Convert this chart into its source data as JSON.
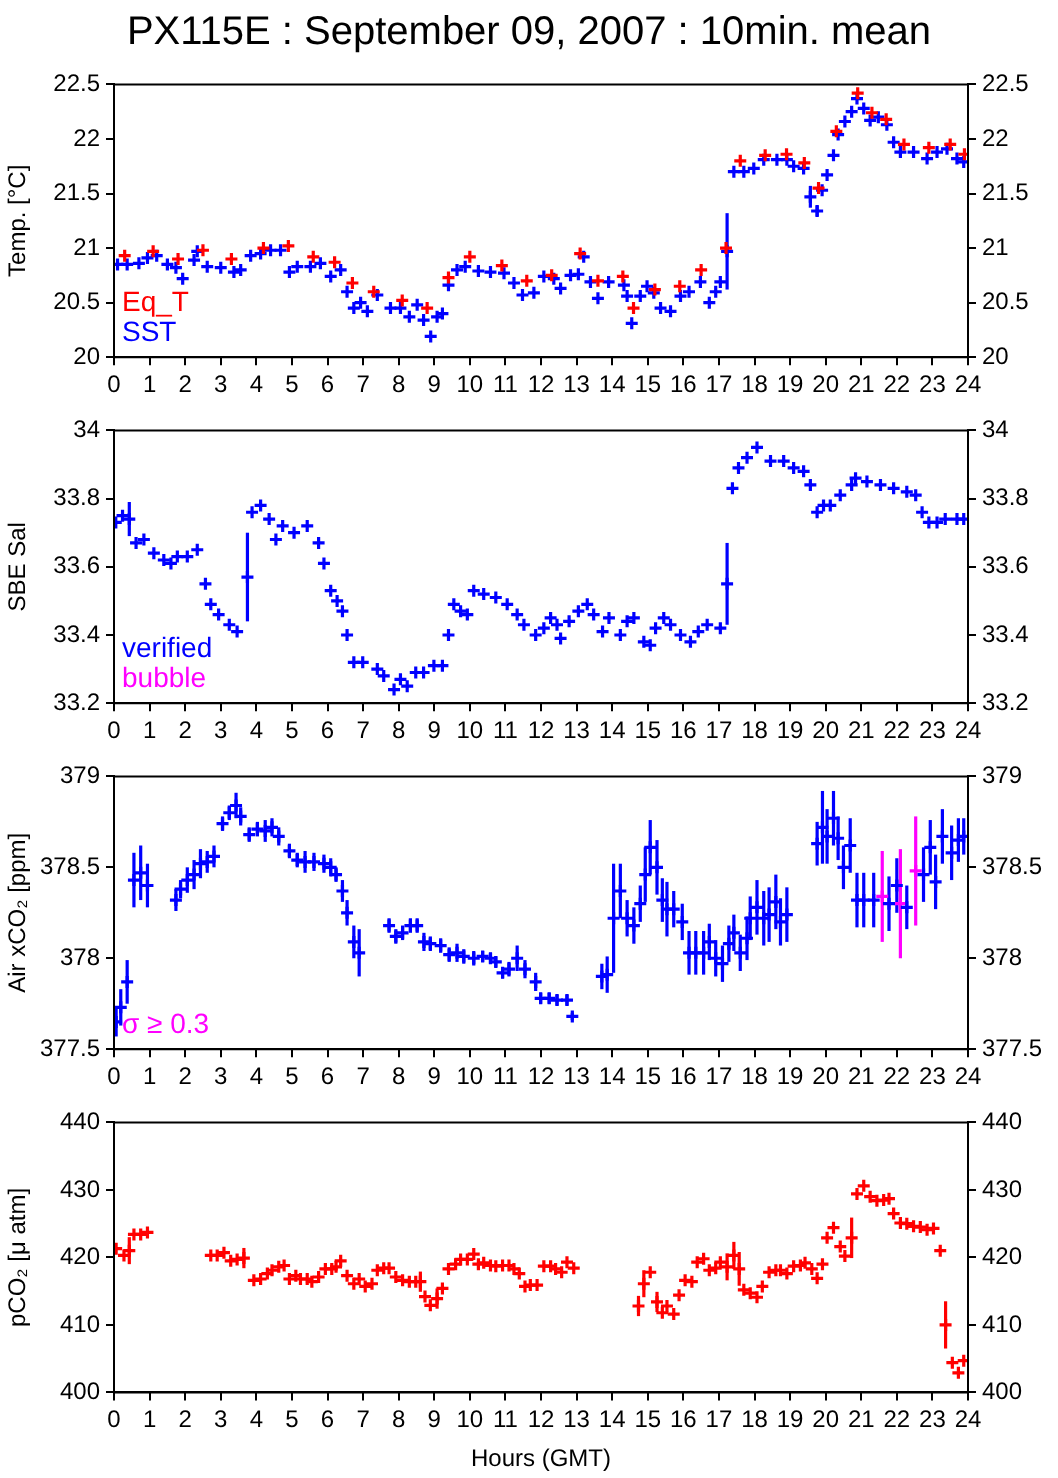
{
  "chart_data": [
    {
      "type": "scatter",
      "title": "PX115E : September 09, 2007 : 10min. mean",
      "ylabel": "Temp. [°C]",
      "xlim": [
        0,
        24
      ],
      "xticks": [
        0,
        1,
        2,
        3,
        4,
        5,
        6,
        7,
        8,
        9,
        10,
        11,
        12,
        13,
        14,
        15,
        16,
        17,
        18,
        19,
        20,
        21,
        22,
        23,
        24
      ],
      "ylim": [
        20,
        22.5
      ],
      "yticks": [
        20,
        20.5,
        21,
        21.5,
        22,
        22.5
      ],
      "y2lim": [
        20,
        22.5
      ],
      "y2ticks": [
        20,
        20.5,
        21,
        21.5,
        22,
        22.5
      ],
      "marker": "cross",
      "legend": "bottom left",
      "series": [
        {
          "name": "Eq_T",
          "color": "#ff0000",
          "x": [
            0.3,
            1.1,
            1.8,
            2.5,
            3.3,
            4.2,
            4.9,
            5.6,
            6.2,
            6.7,
            7.3,
            8.1,
            8.8,
            9.4,
            10.0,
            10.9,
            11.6,
            12.3,
            13.1,
            13.6,
            14.3,
            14.6,
            15.2,
            15.9,
            16.5,
            17.2,
            17.6,
            18.3,
            18.9,
            19.4,
            19.8,
            20.3,
            20.9,
            21.3,
            21.7,
            22.2,
            22.9,
            23.5,
            23.9
          ],
          "values": [
            20.93,
            20.97,
            20.9,
            20.98,
            20.9,
            21.0,
            21.02,
            20.92,
            20.87,
            20.68,
            20.6,
            20.52,
            20.45,
            20.73,
            20.92,
            20.84,
            20.7,
            20.75,
            20.95,
            20.7,
            20.74,
            20.45,
            20.62,
            20.65,
            20.8,
            21.0,
            21.8,
            21.85,
            21.86,
            21.78,
            21.55,
            22.07,
            22.42,
            22.24,
            22.18,
            21.95,
            21.92,
            21.95,
            21.86
          ]
        },
        {
          "name": "SST",
          "color": "#0000ff",
          "x": [
            0.1,
            0.37,
            0.7,
            0.94,
            1.2,
            1.5,
            1.74,
            1.93,
            2.25,
            2.34,
            2.62,
            3.0,
            3.37,
            3.56,
            3.84,
            4.12,
            4.4,
            4.68,
            4.93,
            5.15,
            5.52,
            5.8,
            6.09,
            6.37,
            6.55,
            6.74,
            6.93,
            7.12,
            7.4,
            7.77,
            8.05,
            8.3,
            8.52,
            8.7,
            8.9,
            9.08,
            9.23,
            9.4,
            9.64,
            9.87,
            10.24,
            10.58,
            10.96,
            11.24,
            11.48,
            11.8,
            12.08,
            12.36,
            12.55,
            12.83,
            13.05,
            13.2,
            13.39,
            13.6,
            13.9,
            14.33,
            14.42,
            14.55,
            14.79,
            14.98,
            15.17,
            15.36,
            15.64,
            15.92,
            16.16,
            16.48,
            16.73,
            16.91,
            17.04,
            17.23,
            17.42,
            17.7,
            17.98,
            18.26,
            18.63,
            18.91,
            19.1,
            19.38,
            19.57,
            19.76,
            19.9,
            20.04,
            20.22,
            20.35,
            20.54,
            20.73,
            20.88,
            21.07,
            21.25,
            21.48,
            21.72,
            21.91,
            22.1,
            22.47,
            22.85,
            23.13,
            23.41,
            23.69,
            23.88
          ],
          "values": [
            20.85,
            20.85,
            20.86,
            20.91,
            20.93,
            20.85,
            20.82,
            20.72,
            20.89,
            20.97,
            20.83,
            20.82,
            20.78,
            20.8,
            20.93,
            20.95,
            20.98,
            20.98,
            20.78,
            20.83,
            20.83,
            20.86,
            20.74,
            20.8,
            20.6,
            20.45,
            20.5,
            20.42,
            20.57,
            20.45,
            20.45,
            20.37,
            20.48,
            20.34,
            20.19,
            20.37,
            20.4,
            20.66,
            20.8,
            20.83,
            20.79,
            20.78,
            20.77,
            20.68,
            20.57,
            20.59,
            20.74,
            20.72,
            20.63,
            20.75,
            20.76,
            20.92,
            20.69,
            20.54,
            20.69,
            20.66,
            20.56,
            20.31,
            20.56,
            20.65,
            20.59,
            20.45,
            20.42,
            20.56,
            20.6,
            20.69,
            20.5,
            20.6,
            20.69,
            20.97,
            21.7,
            21.7,
            21.73,
            21.81,
            21.81,
            21.81,
            21.75,
            21.73,
            21.47,
            21.34,
            21.53,
            21.67,
            21.85,
            22.04,
            22.16,
            22.25,
            22.37,
            22.28,
            22.17,
            22.2,
            22.13,
            21.97,
            21.88,
            21.88,
            21.82,
            21.88,
            21.91,
            21.82,
            21.79
          ],
          "errors": [
            null,
            null,
            null,
            null,
            null,
            null,
            null,
            null,
            null,
            null,
            null,
            null,
            null,
            null,
            null,
            null,
            null,
            null,
            null,
            null,
            null,
            null,
            null,
            null,
            null,
            null,
            null,
            null,
            null,
            null,
            null,
            null,
            null,
            null,
            null,
            null,
            null,
            null,
            null,
            null,
            null,
            null,
            null,
            null,
            null,
            null,
            null,
            null,
            null,
            null,
            null,
            null,
            null,
            null,
            null,
            null,
            null,
            null,
            null,
            null,
            null,
            null,
            null,
            null,
            null,
            null,
            null,
            null,
            null,
            0.35,
            null,
            null,
            null,
            null,
            null,
            null,
            null,
            null,
            0.1,
            0.05,
            null,
            null,
            null,
            null,
            null,
            null,
            null,
            null,
            null,
            null,
            null,
            null,
            null,
            null,
            null,
            null,
            null,
            null,
            null
          ]
        }
      ]
    },
    {
      "type": "scatter",
      "ylabel": "SBE Sal",
      "xlim": [
        0,
        24
      ],
      "xticks": [
        0,
        1,
        2,
        3,
        4,
        5,
        6,
        7,
        8,
        9,
        10,
        11,
        12,
        13,
        14,
        15,
        16,
        17,
        18,
        19,
        20,
        21,
        22,
        23,
        24
      ],
      "ylim": [
        33.2,
        34
      ],
      "yticks": [
        33.2,
        33.4,
        33.6,
        33.8,
        34
      ],
      "y2lim": [
        33.2,
        34
      ],
      "y2ticks": [
        33.2,
        33.4,
        33.6,
        33.8,
        34
      ],
      "marker": "cross",
      "legend": "bottom left",
      "series": [
        {
          "name": "verified",
          "color": "#0000ff",
          "x": [
            0.05,
            0.24,
            0.43,
            0.62,
            0.84,
            1.12,
            1.4,
            1.6,
            1.78,
            2.06,
            2.34,
            2.57,
            2.72,
            2.94,
            3.24,
            3.46,
            3.75,
            3.88,
            4.12,
            4.36,
            4.55,
            4.74,
            5.06,
            5.43,
            5.75,
            5.9,
            6.09,
            6.27,
            6.42,
            6.55,
            6.74,
            6.99,
            7.4,
            7.58,
            7.87,
            8.05,
            8.24,
            8.48,
            8.7,
            8.99,
            9.23,
            9.4,
            9.55,
            9.74,
            9.93,
            10.11,
            10.39,
            10.73,
            11.05,
            11.33,
            11.52,
            11.85,
            12.08,
            12.27,
            12.45,
            12.55,
            12.79,
            13.05,
            13.3,
            13.48,
            13.73,
            13.91,
            14.23,
            14.42,
            14.61,
            14.89,
            15.07,
            15.22,
            15.45,
            15.64,
            15.92,
            16.2,
            16.42,
            16.67,
            17.04,
            17.23,
            17.38,
            17.55,
            17.79,
            18.07,
            18.45,
            18.82,
            19.1,
            19.38,
            19.57,
            19.76,
            19.94,
            20.13,
            20.41,
            20.73,
            20.84,
            21.16,
            21.54,
            21.91,
            22.28,
            22.53,
            22.71,
            22.9,
            23.13,
            23.36,
            23.69,
            23.88
          ],
          "values": [
            33.73,
            33.75,
            33.74,
            33.67,
            33.68,
            33.64,
            33.62,
            33.61,
            33.63,
            33.63,
            33.65,
            33.55,
            33.49,
            33.46,
            33.43,
            33.41,
            33.57,
            33.76,
            33.78,
            33.74,
            33.68,
            33.72,
            33.7,
            33.72,
            33.67,
            33.61,
            33.53,
            33.5,
            33.47,
            33.4,
            33.32,
            33.32,
            33.3,
            33.28,
            33.24,
            33.27,
            33.25,
            33.29,
            33.29,
            33.31,
            33.31,
            33.4,
            33.49,
            33.47,
            33.46,
            33.53,
            33.52,
            33.51,
            33.49,
            33.46,
            33.43,
            33.4,
            33.42,
            33.45,
            33.43,
            33.39,
            33.44,
            33.47,
            33.49,
            33.46,
            33.41,
            33.45,
            33.4,
            33.44,
            33.45,
            33.38,
            33.37,
            33.42,
            33.45,
            33.43,
            33.4,
            33.38,
            33.41,
            33.43,
            33.42,
            33.55,
            33.83,
            33.89,
            33.92,
            33.95,
            33.91,
            33.91,
            33.89,
            33.88,
            33.84,
            33.76,
            33.78,
            33.78,
            33.81,
            33.84,
            33.86,
            33.85,
            33.84,
            33.83,
            33.82,
            33.81,
            33.76,
            33.73,
            33.73,
            33.74,
            33.74,
            33.74
          ],
          "errors": [
            null,
            null,
            0.05,
            null,
            null,
            null,
            null,
            null,
            null,
            null,
            null,
            null,
            null,
            null,
            null,
            null,
            0.13,
            null,
            null,
            null,
            null,
            null,
            null,
            null,
            null,
            null,
            null,
            null,
            null,
            null,
            null,
            null,
            null,
            null,
            null,
            null,
            null,
            null,
            null,
            null,
            null,
            null,
            null,
            null,
            null,
            null,
            null,
            null,
            null,
            null,
            null,
            null,
            null,
            null,
            null,
            null,
            null,
            null,
            null,
            null,
            null,
            null,
            null,
            null,
            null,
            null,
            null,
            null,
            null,
            null,
            null,
            null,
            null,
            null,
            null,
            0.12,
            null,
            null,
            null,
            null,
            null,
            null,
            null,
            null,
            null,
            null,
            null,
            null,
            null,
            null,
            null,
            null,
            null,
            null,
            null,
            null,
            null,
            null,
            null,
            null,
            null,
            null
          ]
        },
        {
          "name": "bubble",
          "color": "#ff00ff"
        }
      ]
    },
    {
      "type": "scatter",
      "ylabel": "Air xCO₂ [ppm]",
      "xlim": [
        0,
        24
      ],
      "xticks": [
        0,
        1,
        2,
        3,
        4,
        5,
        6,
        7,
        8,
        9,
        10,
        11,
        12,
        13,
        14,
        15,
        16,
        17,
        18,
        19,
        20,
        21,
        22,
        23,
        24
      ],
      "ylim": [
        377.5,
        379
      ],
      "yticks": [
        377.5,
        378,
        378.5,
        379
      ],
      "y2lim": [
        377.5,
        379
      ],
      "y2ticks": [
        377.5,
        378,
        378.5,
        379
      ],
      "marker": "cross",
      "legend": "bottom left",
      "series": [
        {
          "color": "#0000ff",
          "x": [
            0.06,
            0.19,
            0.37,
            0.56,
            0.75,
            0.94,
            1.74,
            1.87,
            2.06,
            2.25,
            2.43,
            2.62,
            2.81,
            3.05,
            3.24,
            3.43,
            3.56,
            3.8,
            4.03,
            4.25,
            4.44,
            4.63,
            4.93,
            5.15,
            5.37,
            5.62,
            5.9,
            6.09,
            6.24,
            6.42,
            6.55,
            6.74,
            6.89,
            7.73,
            7.92,
            8.11,
            8.33,
            8.52,
            8.71,
            8.89,
            9.18,
            9.42,
            9.64,
            9.83,
            10.11,
            10.36,
            10.58,
            10.73,
            10.92,
            11.1,
            11.33,
            11.55,
            11.85,
            11.99,
            12.23,
            12.45,
            12.73,
            12.88,
            13.71,
            13.86,
            14.04,
            14.23,
            14.42,
            14.61,
            14.79,
            14.93,
            15.07,
            15.26,
            15.41,
            15.54,
            15.73,
            15.97,
            16.16,
            16.35,
            16.57,
            16.73,
            16.91,
            17.1,
            17.28,
            17.42,
            17.6,
            17.79,
            17.88,
            18.07,
            18.26,
            18.41,
            18.6,
            18.73,
            18.91,
            19.76,
            19.91,
            20.04,
            20.22,
            20.35,
            20.5,
            20.69,
            20.88,
            21.07,
            21.35,
            21.78,
            22.0,
            22.28,
            22.75,
            22.94,
            23.09,
            23.28,
            23.54,
            23.73,
            23.88
          ],
          "values": [
            377.65,
            377.73,
            377.87,
            378.43,
            378.47,
            378.4,
            378.32,
            378.38,
            378.43,
            378.46,
            378.52,
            378.53,
            378.56,
            378.74,
            378.8,
            378.84,
            378.78,
            378.68,
            378.71,
            378.7,
            378.72,
            378.67,
            378.59,
            378.54,
            378.53,
            378.53,
            378.52,
            378.5,
            378.46,
            378.37,
            378.25,
            378.09,
            378.03,
            378.18,
            378.12,
            378.14,
            378.18,
            378.18,
            378.09,
            378.08,
            378.07,
            378.02,
            378.03,
            378.01,
            378.0,
            378.01,
            378.0,
            377.98,
            377.92,
            377.94,
            378.0,
            377.94,
            377.87,
            377.78,
            377.78,
            377.77,
            377.77,
            377.68,
            377.9,
            377.91,
            378.22,
            378.37,
            378.22,
            378.18,
            378.3,
            378.46,
            378.61,
            378.5,
            378.32,
            378.27,
            378.27,
            378.2,
            378.03,
            378.03,
            378.03,
            378.09,
            378.0,
            377.97,
            378.08,
            378.14,
            378.03,
            378.11,
            378.22,
            378.28,
            378.22,
            378.24,
            378.31,
            378.2,
            378.24,
            378.63,
            378.72,
            378.67,
            378.77,
            378.66,
            378.5,
            378.62,
            378.32,
            378.32,
            378.32,
            378.3,
            378.4,
            378.28,
            378.46,
            378.61,
            378.42,
            378.67,
            378.58,
            378.65,
            378.67
          ],
          "errors": [
            0.08,
            0.1,
            0.12,
            0.15,
            0.15,
            0.12,
            0.06,
            0.05,
            0.07,
            0.08,
            0.08,
            0.06,
            0.06,
            0.04,
            0.04,
            0.07,
            0.05,
            0.04,
            0.04,
            0.06,
            0.05,
            0.05,
            0.04,
            0.04,
            0.06,
            0.05,
            0.05,
            0.05,
            0.04,
            0.06,
            0.07,
            0.09,
            0.13,
            0.04,
            0.04,
            0.04,
            0.04,
            0.04,
            0.05,
            0.04,
            0.04,
            0.04,
            0.05,
            0.04,
            0.04,
            0.03,
            0.03,
            0.03,
            0.03,
            0.04,
            0.07,
            0.05,
            0.05,
            0.03,
            0.03,
            0.03,
            0.03,
            0.02,
            0.07,
            0.1,
            0.3,
            0.15,
            0.1,
            0.1,
            0.1,
            0.15,
            0.15,
            0.15,
            0.12,
            0.15,
            0.1,
            0.1,
            0.12,
            0.12,
            0.12,
            0.1,
            0.1,
            0.1,
            0.1,
            0.1,
            0.1,
            0.12,
            0.12,
            0.15,
            0.15,
            0.15,
            0.15,
            0.13,
            0.15,
            0.12,
            0.2,
            0.15,
            0.15,
            0.12,
            0.12,
            0.15,
            0.15,
            0.15,
            0.15,
            0.15,
            0.15,
            0.12,
            0.15,
            0.15,
            0.15,
            0.15,
            0.15,
            0.12,
            0.1
          ]
        },
        {
          "name": "σ ≥ 0.3",
          "color": "#ff00ff",
          "x": [
            21.59,
            22.1,
            22.53
          ],
          "values": [
            378.34,
            378.3,
            378.48
          ],
          "errors": [
            0.25,
            0.3,
            0.3
          ]
        }
      ]
    },
    {
      "type": "scatter",
      "ylabel": "pCO₂ [μ atm]",
      "xlabel": "Hours (GMT)",
      "xlim": [
        0,
        24
      ],
      "xticks": [
        0,
        1,
        2,
        3,
        4,
        5,
        6,
        7,
        8,
        9,
        10,
        11,
        12,
        13,
        14,
        15,
        16,
        17,
        18,
        19,
        20,
        21,
        22,
        23,
        24
      ],
      "ylim": [
        400,
        440
      ],
      "yticks": [
        400,
        410,
        420,
        430,
        440
      ],
      "y2lim": [
        400,
        440
      ],
      "y2ticks": [
        400,
        410,
        420,
        430,
        440
      ],
      "marker": "cross",
      "series": [
        {
          "color": "#ff0000",
          "x": [
            0.06,
            0.28,
            0.43,
            0.56,
            0.75,
            0.94,
            2.72,
            2.9,
            3.09,
            3.28,
            3.46,
            3.65,
            3.93,
            4.12,
            4.31,
            4.44,
            4.63,
            4.78,
            4.93,
            5.11,
            5.24,
            5.43,
            5.56,
            5.75,
            5.94,
            6.12,
            6.24,
            6.37,
            6.55,
            6.74,
            6.89,
            7.06,
            7.25,
            7.4,
            7.58,
            7.73,
            7.92,
            8.11,
            8.3,
            8.48,
            8.61,
            8.74,
            8.89,
            9.08,
            9.23,
            9.4,
            9.6,
            9.74,
            9.93,
            10.11,
            10.24,
            10.39,
            10.58,
            10.73,
            10.92,
            11.1,
            11.24,
            11.39,
            11.55,
            11.7,
            11.89,
            12.08,
            12.27,
            12.41,
            12.58,
            12.73,
            12.92,
            14.74,
            14.89,
            15.07,
            15.26,
            15.41,
            15.54,
            15.73,
            15.88,
            16.05,
            16.24,
            16.39,
            16.57,
            16.73,
            16.91,
            17.04,
            17.23,
            17.42,
            17.57,
            17.7,
            17.88,
            18.07,
            18.22,
            18.41,
            18.6,
            18.73,
            18.91,
            19.1,
            19.29,
            19.42,
            19.61,
            19.76,
            19.91,
            20.04,
            20.22,
            20.41,
            20.54,
            20.73,
            20.88,
            21.07,
            21.25,
            21.44,
            21.63,
            21.78,
            21.91,
            22.1,
            22.28,
            22.47,
            22.66,
            22.85,
            23.03,
            23.22,
            23.37,
            23.56,
            23.73,
            23.88
          ],
          "values": [
            421.3,
            420.3,
            421.0,
            423.4,
            423.4,
            423.7,
            420.3,
            420.3,
            420.7,
            419.5,
            419.7,
            419.9,
            416.6,
            416.8,
            417.6,
            418.1,
            418.6,
            418.8,
            416.8,
            417.3,
            416.8,
            416.8,
            416.4,
            417.1,
            418.3,
            418.3,
            418.6,
            419.5,
            417.3,
            416.1,
            416.8,
            415.7,
            416.1,
            418.1,
            418.4,
            418.4,
            417.1,
            416.6,
            416.4,
            416.4,
            416.4,
            414.2,
            412.9,
            413.9,
            415.4,
            418.3,
            419.0,
            419.7,
            419.7,
            420.5,
            419.0,
            419.2,
            418.8,
            418.7,
            418.8,
            418.8,
            418.3,
            417.6,
            415.7,
            415.9,
            415.9,
            418.7,
            418.7,
            418.3,
            417.8,
            419.3,
            418.4,
            412.8,
            416.1,
            417.8,
            413.4,
            411.8,
            412.8,
            411.6,
            414.4,
            416.6,
            416.4,
            419.3,
            419.8,
            418.1,
            418.4,
            419.3,
            418.6,
            420.3,
            418.3,
            415.2,
            414.7,
            414.1,
            415.7,
            417.8,
            418.1,
            418.1,
            417.6,
            418.7,
            418.8,
            419.2,
            418.3,
            416.9,
            419.0,
            422.9,
            424.4,
            421.6,
            420.2,
            422.9,
            429.4,
            430.6,
            429.0,
            428.4,
            428.5,
            428.7,
            426.5,
            425.1,
            425.0,
            424.6,
            424.5,
            424.1,
            424.3,
            421.0,
            410.0,
            404.4,
            402.9,
            404.7
          ],
          "errors": [
            null,
            null,
            2,
            null,
            null,
            null,
            null,
            null,
            null,
            null,
            null,
            1.5,
            null,
            null,
            null,
            null,
            null,
            null,
            null,
            null,
            null,
            null,
            null,
            null,
            null,
            null,
            null,
            null,
            null,
            null,
            null,
            null,
            null,
            null,
            null,
            null,
            null,
            null,
            null,
            null,
            1.5,
            null,
            null,
            1.5,
            null,
            null,
            null,
            null,
            null,
            null,
            null,
            null,
            null,
            null,
            null,
            null,
            null,
            null,
            null,
            null,
            null,
            null,
            null,
            null,
            null,
            null,
            null,
            1.5,
            2,
            null,
            1.5,
            null,
            null,
            null,
            null,
            null,
            null,
            null,
            null,
            null,
            null,
            null,
            2,
            2,
            2.5,
            null,
            null,
            null,
            null,
            null,
            null,
            null,
            null,
            null,
            null,
            null,
            null,
            null,
            null,
            null,
            null,
            null,
            null,
            3,
            null,
            null,
            null,
            null,
            null,
            null,
            null,
            null,
            null,
            null,
            null,
            null,
            null,
            null,
            3.5,
            null,
            null,
            null
          ]
        }
      ]
    }
  ]
}
